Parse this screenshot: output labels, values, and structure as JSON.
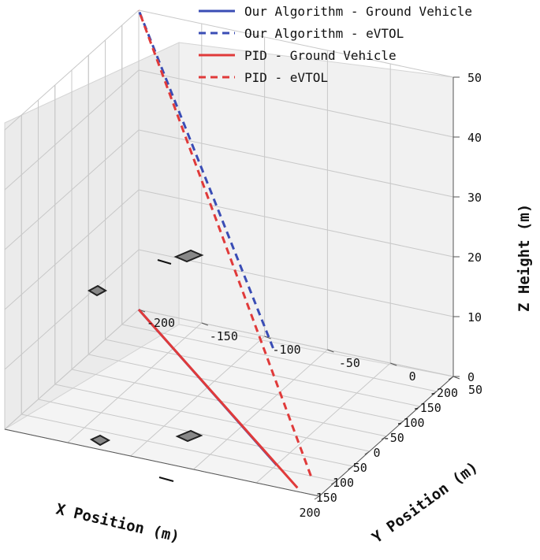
{
  "chart_data": {
    "type": "line3d",
    "title": "",
    "xlabel": "X Position (m)",
    "ylabel": "Y Position (m)",
    "zlabel": "Z Height (m)",
    "xlim": [
      -200,
      200
    ],
    "ylim": [
      -200,
      50
    ],
    "zlim": [
      0,
      50
    ],
    "x_ticks": [
      200,
      150,
      100,
      50,
      0,
      -50,
      -100,
      -150,
      -200
    ],
    "y_ticks": [
      -200,
      -150,
      -100,
      -50,
      0,
      50
    ],
    "z_ticks": [
      0,
      10,
      20,
      30,
      40,
      50
    ],
    "grid": true,
    "legend_position": "top",
    "series": [
      {
        "name": "Our Algorithm - Ground Vehicle",
        "color": "#3a4db5",
        "linestyle": "solid",
        "points": [
          {
            "x": 140,
            "y": 0,
            "z": 0
          },
          {
            "x": -200,
            "y": -200,
            "z": 0
          }
        ]
      },
      {
        "name": "Our Algorithm - eVTOL",
        "color": "#3a4db5",
        "linestyle": "dashed",
        "points": [
          {
            "x": 150,
            "y": 0,
            "z": 20
          },
          {
            "x": -200,
            "y": -200,
            "z": 50
          }
        ]
      },
      {
        "name": "PID - Ground Vehicle",
        "color": "#e03a3a",
        "linestyle": "solid",
        "points": [
          {
            "x": 190,
            "y": 30,
            "z": 0
          },
          {
            "x": -200,
            "y": -200,
            "z": 0
          }
        ]
      },
      {
        "name": "PID - eVTOL",
        "color": "#e03a3a",
        "linestyle": "dashed",
        "points": [
          {
            "x": 150,
            "y": 30,
            "z": 0
          },
          {
            "x": -200,
            "y": -200,
            "z": 50
          }
        ]
      }
    ]
  }
}
